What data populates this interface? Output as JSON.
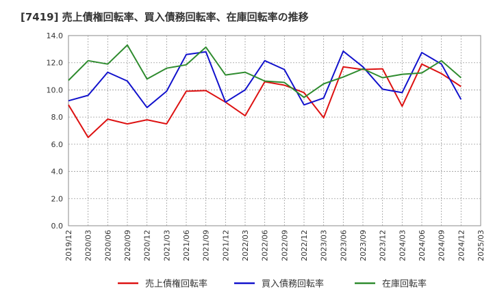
{
  "chart_data": {
    "type": "line",
    "title": "[7419]  売上債権回転率、買入債務回転率、在庫回転率の推移",
    "xlabel": "",
    "ylabel": "",
    "ylim": [
      0,
      14
    ],
    "yticks": [
      "0.0",
      "2.0",
      "4.0",
      "6.0",
      "8.0",
      "10.0",
      "12.0",
      "14.0"
    ],
    "categories": [
      "2019/12",
      "2020/03",
      "2020/06",
      "2020/09",
      "2020/12",
      "2021/03",
      "2021/06",
      "2021/09",
      "2021/12",
      "2022/03",
      "2022/06",
      "2022/09",
      "2022/12",
      "2023/03",
      "2023/06",
      "2023/09",
      "2023/12",
      "2024/03",
      "2024/06",
      "2024/09",
      "2024/12",
      "2025/03"
    ],
    "series": [
      {
        "name": "売上債権回転率",
        "color": "#dd1111",
        "values": [
          8.9,
          6.5,
          7.85,
          7.5,
          7.8,
          7.5,
          9.9,
          9.95,
          9.1,
          8.1,
          10.6,
          10.35,
          9.8,
          7.95,
          11.7,
          11.5,
          11.55,
          8.8,
          11.9,
          11.2,
          10.25,
          null
        ]
      },
      {
        "name": "買入債務回転率",
        "color": "#1111cc",
        "values": [
          9.2,
          9.6,
          11.3,
          10.65,
          8.7,
          9.9,
          12.6,
          12.8,
          9.1,
          10.0,
          12.15,
          11.5,
          8.9,
          9.4,
          12.85,
          11.7,
          10.05,
          9.8,
          12.75,
          11.9,
          9.3,
          null
        ]
      },
      {
        "name": "在庫回転率",
        "color": "#2e8b2e",
        "values": [
          10.7,
          12.15,
          11.9,
          13.3,
          10.8,
          11.6,
          11.85,
          13.15,
          11.1,
          11.3,
          10.65,
          10.55,
          9.45,
          10.45,
          10.95,
          11.55,
          10.9,
          11.15,
          11.25,
          12.15,
          10.9,
          null
        ]
      }
    ],
    "grid": true,
    "legend": "bottom"
  }
}
